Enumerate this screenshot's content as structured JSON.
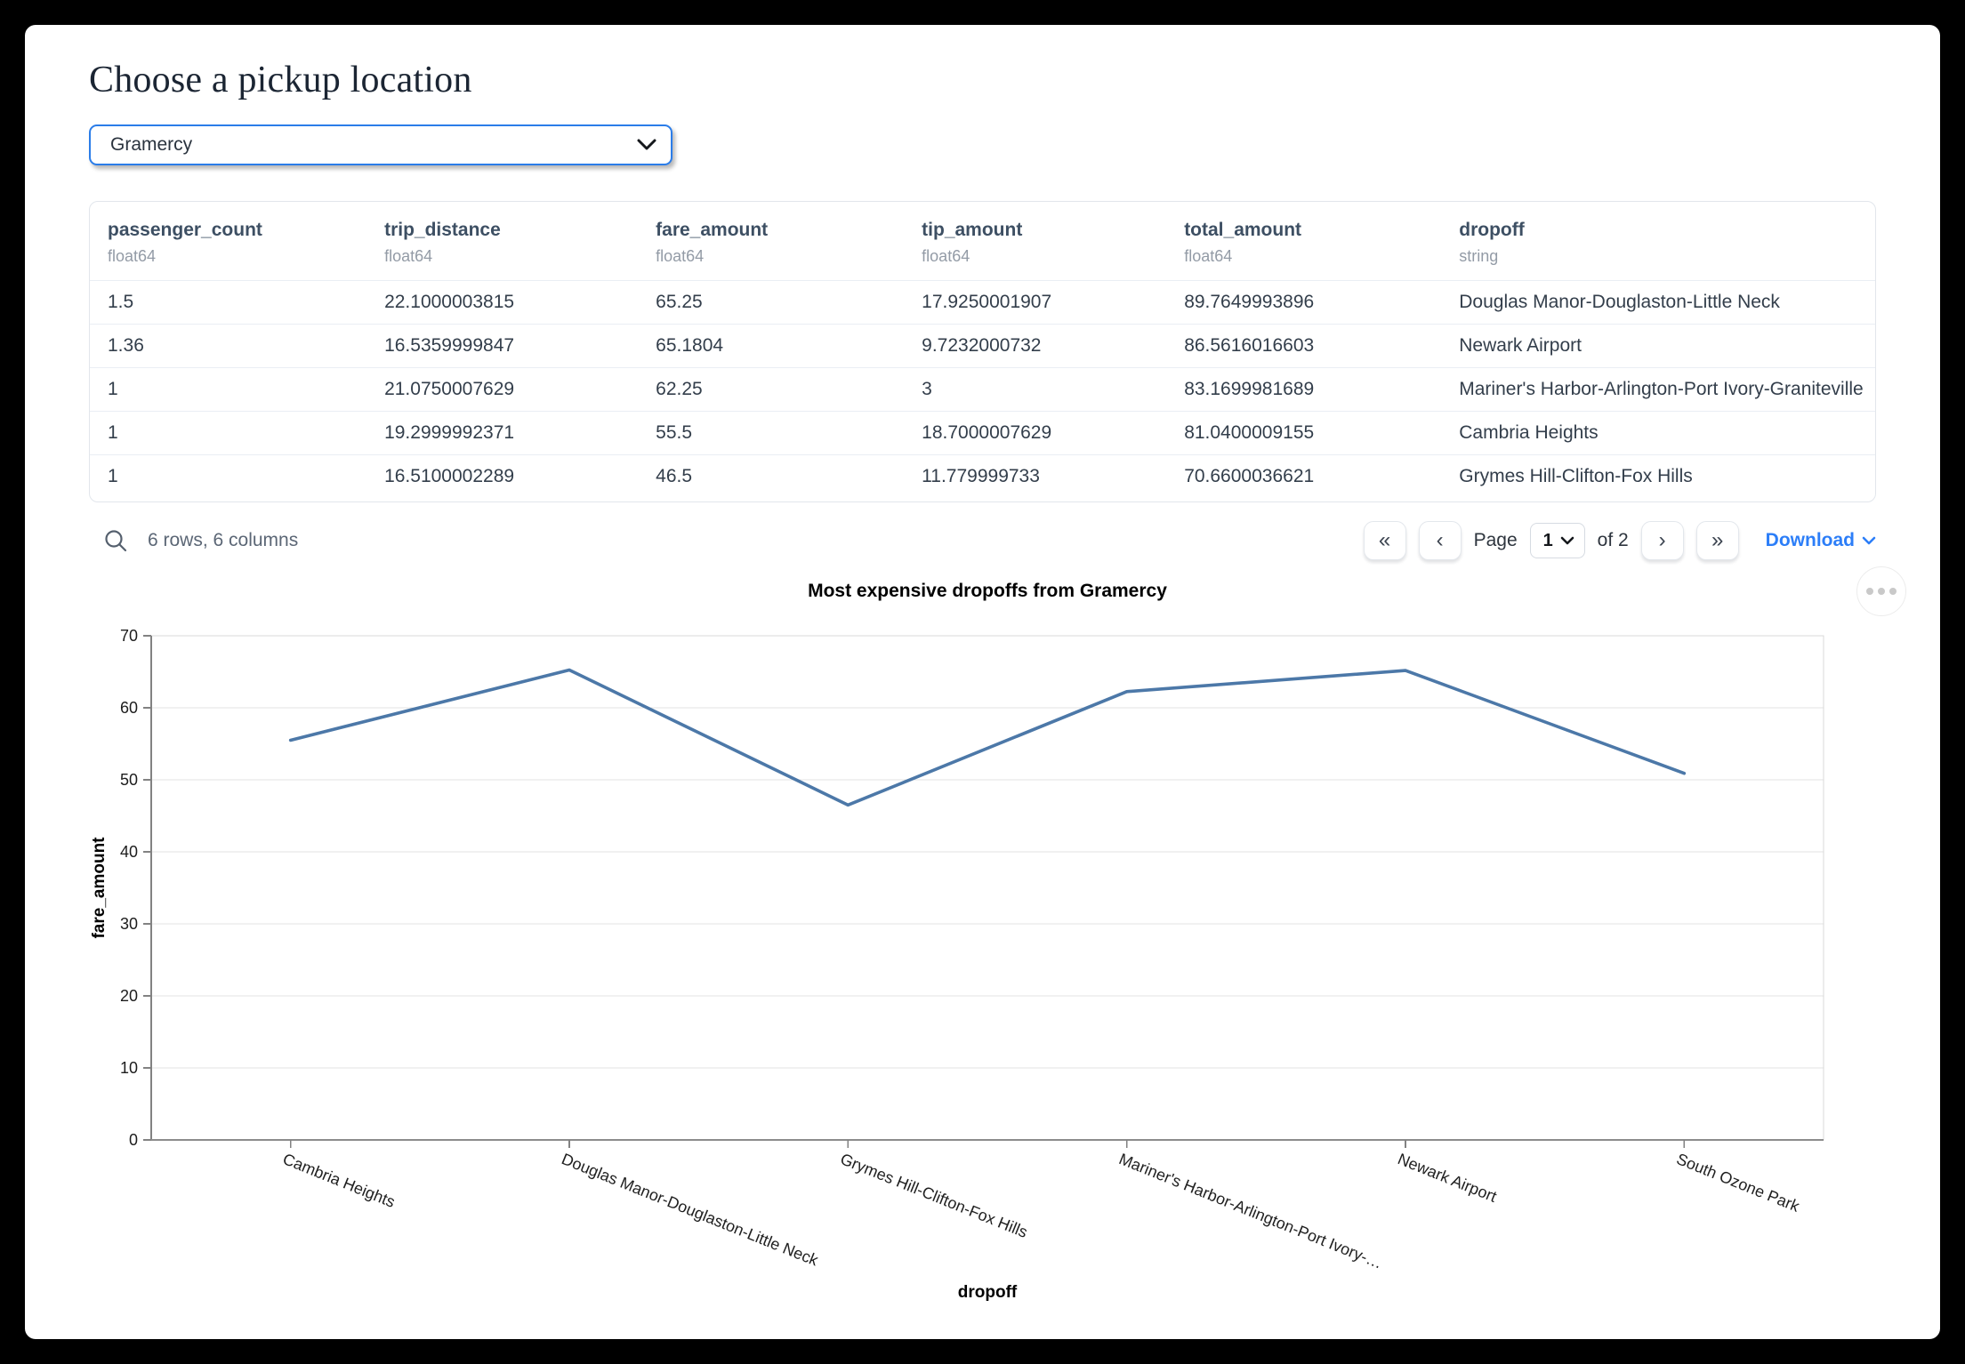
{
  "app": {
    "title": "Choose a pickup location"
  },
  "pickup": {
    "value": "Gramercy"
  },
  "table": {
    "columns": [
      {
        "name": "passenger_count",
        "type": "float64"
      },
      {
        "name": "trip_distance",
        "type": "float64"
      },
      {
        "name": "fare_amount",
        "type": "float64"
      },
      {
        "name": "tip_amount",
        "type": "float64"
      },
      {
        "name": "total_amount",
        "type": "float64"
      },
      {
        "name": "dropoff",
        "type": "string"
      }
    ],
    "rows": [
      [
        "1.5",
        "22.1000003815",
        "65.25",
        "17.9250001907",
        "89.7649993896",
        "Douglas Manor-Douglaston-Little Neck"
      ],
      [
        "1.36",
        "16.5359999847",
        "65.1804",
        "9.7232000732",
        "86.5616016603",
        "Newark Airport"
      ],
      [
        "1",
        "21.0750007629",
        "62.25",
        "3",
        "83.1699981689",
        "Mariner's Harbor-Arlington-Port Ivory-Graniteville"
      ],
      [
        "1",
        "19.2999992371",
        "55.5",
        "18.7000007629",
        "81.0400009155",
        "Cambria Heights"
      ],
      [
        "1",
        "16.5100002289",
        "46.5",
        "11.779999733",
        "70.6600036621",
        "Grymes Hill-Clifton-Fox Hills"
      ]
    ],
    "summary": "6 rows, 6 columns"
  },
  "pagination": {
    "first_icon": "«",
    "prev_icon": "‹",
    "page_label": "Page",
    "page_value": "1",
    "of_label": "of 2",
    "next_icon": "›",
    "last_icon": "»"
  },
  "download": {
    "label": "Download"
  },
  "chart_data": {
    "type": "line",
    "title": "Most expensive dropoffs from Gramercy",
    "xlabel": "dropoff",
    "ylabel": "fare_amount",
    "categories": [
      "Cambria Heights",
      "Douglas Manor-Douglaston-Little Neck",
      "Grymes Hill-Clifton-Fox Hills",
      "Mariner's Harbor-Arlington-Port Ivory-…",
      "Newark Airport",
      "South Ozone Park"
    ],
    "values": [
      55.5,
      65.25,
      46.5,
      62.25,
      65.1804,
      50.9
    ],
    "ylim": [
      0,
      70
    ],
    "yticks": [
      0,
      10,
      20,
      30,
      40,
      50,
      60,
      70
    ],
    "grid": true,
    "legend": "none",
    "label_angle": 22,
    "line_color": "#4c78a8"
  },
  "colors": {
    "accent_blue": "#2b7de9",
    "link_blue": "#2c7ef8"
  }
}
